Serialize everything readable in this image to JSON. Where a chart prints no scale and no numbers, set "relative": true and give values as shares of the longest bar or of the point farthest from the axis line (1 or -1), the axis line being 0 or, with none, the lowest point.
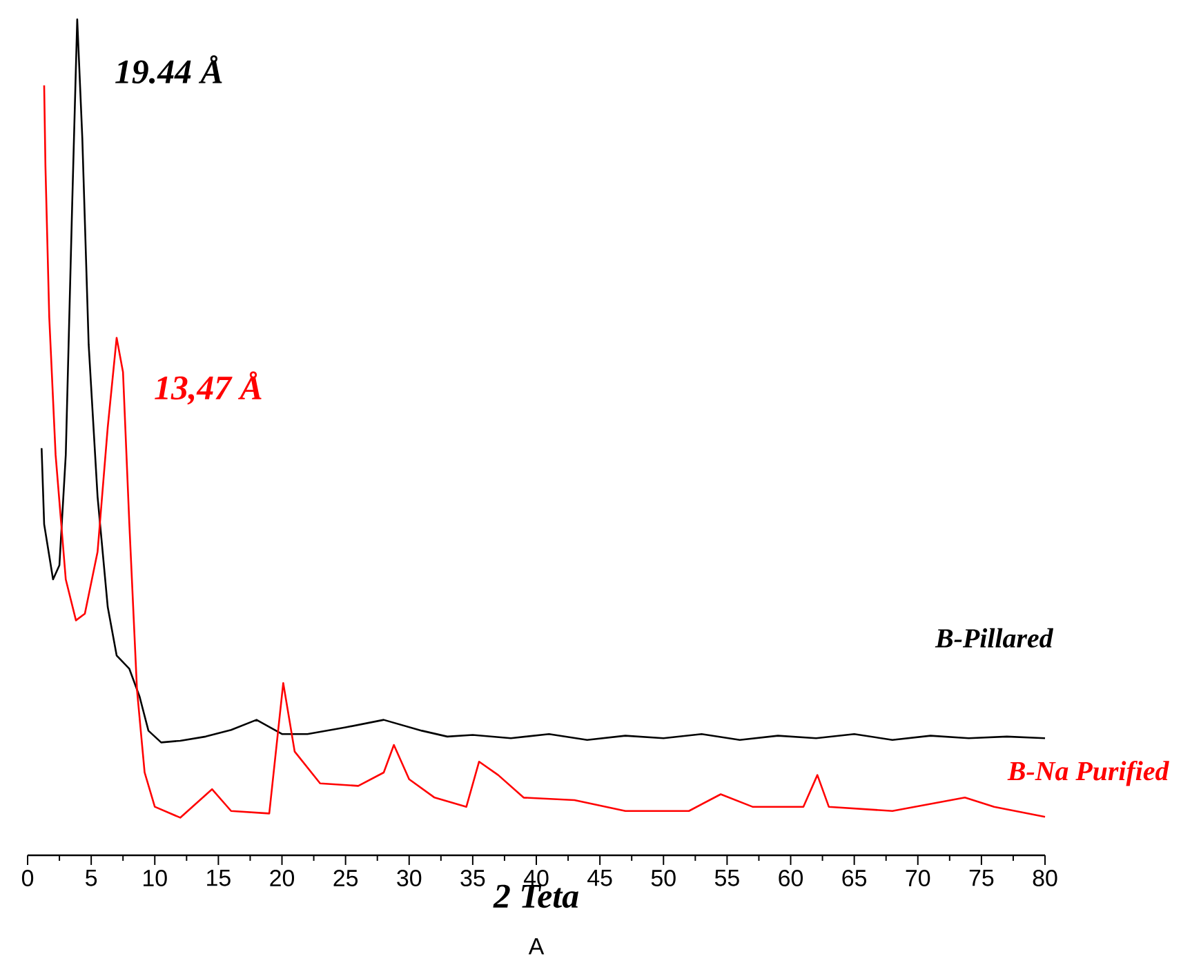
{
  "chart_data": {
    "type": "line",
    "relative": true,
    "xlabel": "2 Teta",
    "xlim": [
      0,
      80
    ],
    "xticks": [
      0,
      5,
      10,
      15,
      20,
      25,
      30,
      35,
      40,
      45,
      50,
      55,
      60,
      65,
      70,
      75,
      80
    ],
    "annotations": [
      {
        "text": "19.44 Å",
        "x": 3.9,
        "y": 1.0
      },
      {
        "text": "13,47 Å",
        "x": 7.0,
        "y": 0.619
      },
      "A"
    ],
    "series": [
      {
        "name": "B-Pillared",
        "color": "#000000",
        "x": [
          1.1,
          1.3,
          2.0,
          2.5,
          3.0,
          3.5,
          3.9,
          4.3,
          4.8,
          5.5,
          6.3,
          7.0,
          8.0,
          8.8,
          9.5,
          10.5,
          12,
          14,
          16,
          18,
          20,
          22,
          25,
          28,
          31,
          33,
          35,
          38,
          41,
          44,
          47,
          50,
          53,
          56,
          59,
          62,
          65,
          68,
          71,
          74,
          77,
          80
        ],
        "values": [
          0.487,
          0.396,
          0.33,
          0.347,
          0.479,
          0.776,
          1.0,
          0.858,
          0.611,
          0.429,
          0.297,
          0.239,
          0.223,
          0.19,
          0.149,
          0.135,
          0.137,
          0.142,
          0.15,
          0.162,
          0.145,
          0.145,
          0.153,
          0.162,
          0.149,
          0.142,
          0.144,
          0.14,
          0.145,
          0.138,
          0.143,
          0.14,
          0.145,
          0.138,
          0.143,
          0.14,
          0.145,
          0.138,
          0.143,
          0.14,
          0.142,
          0.14
        ]
      },
      {
        "name": "B-Na Purified",
        "color": "#ff0000",
        "x": [
          1.3,
          1.4,
          1.7,
          2.2,
          3.0,
          3.8,
          4.5,
          5.5,
          6.3,
          7.0,
          7.5,
          8.0,
          8.6,
          9.2,
          10,
          12,
          14.5,
          16,
          19,
          20.1,
          21,
          23,
          26,
          28,
          28.8,
          30,
          32,
          34.5,
          35.5,
          37,
          39,
          43,
          47,
          52,
          54.5,
          57,
          61,
          62.1,
          63,
          68,
          73.7,
          76,
          80
        ],
        "values": [
          0.921,
          0.825,
          0.644,
          0.479,
          0.33,
          0.281,
          0.289,
          0.363,
          0.512,
          0.619,
          0.578,
          0.396,
          0.198,
          0.099,
          0.058,
          0.045,
          0.079,
          0.053,
          0.05,
          0.206,
          0.124,
          0.086,
          0.083,
          0.099,
          0.132,
          0.091,
          0.069,
          0.058,
          0.112,
          0.096,
          0.069,
          0.066,
          0.053,
          0.053,
          0.073,
          0.058,
          0.058,
          0.096,
          0.058,
          0.053,
          0.069,
          0.058,
          0.046
        ]
      }
    ]
  }
}
